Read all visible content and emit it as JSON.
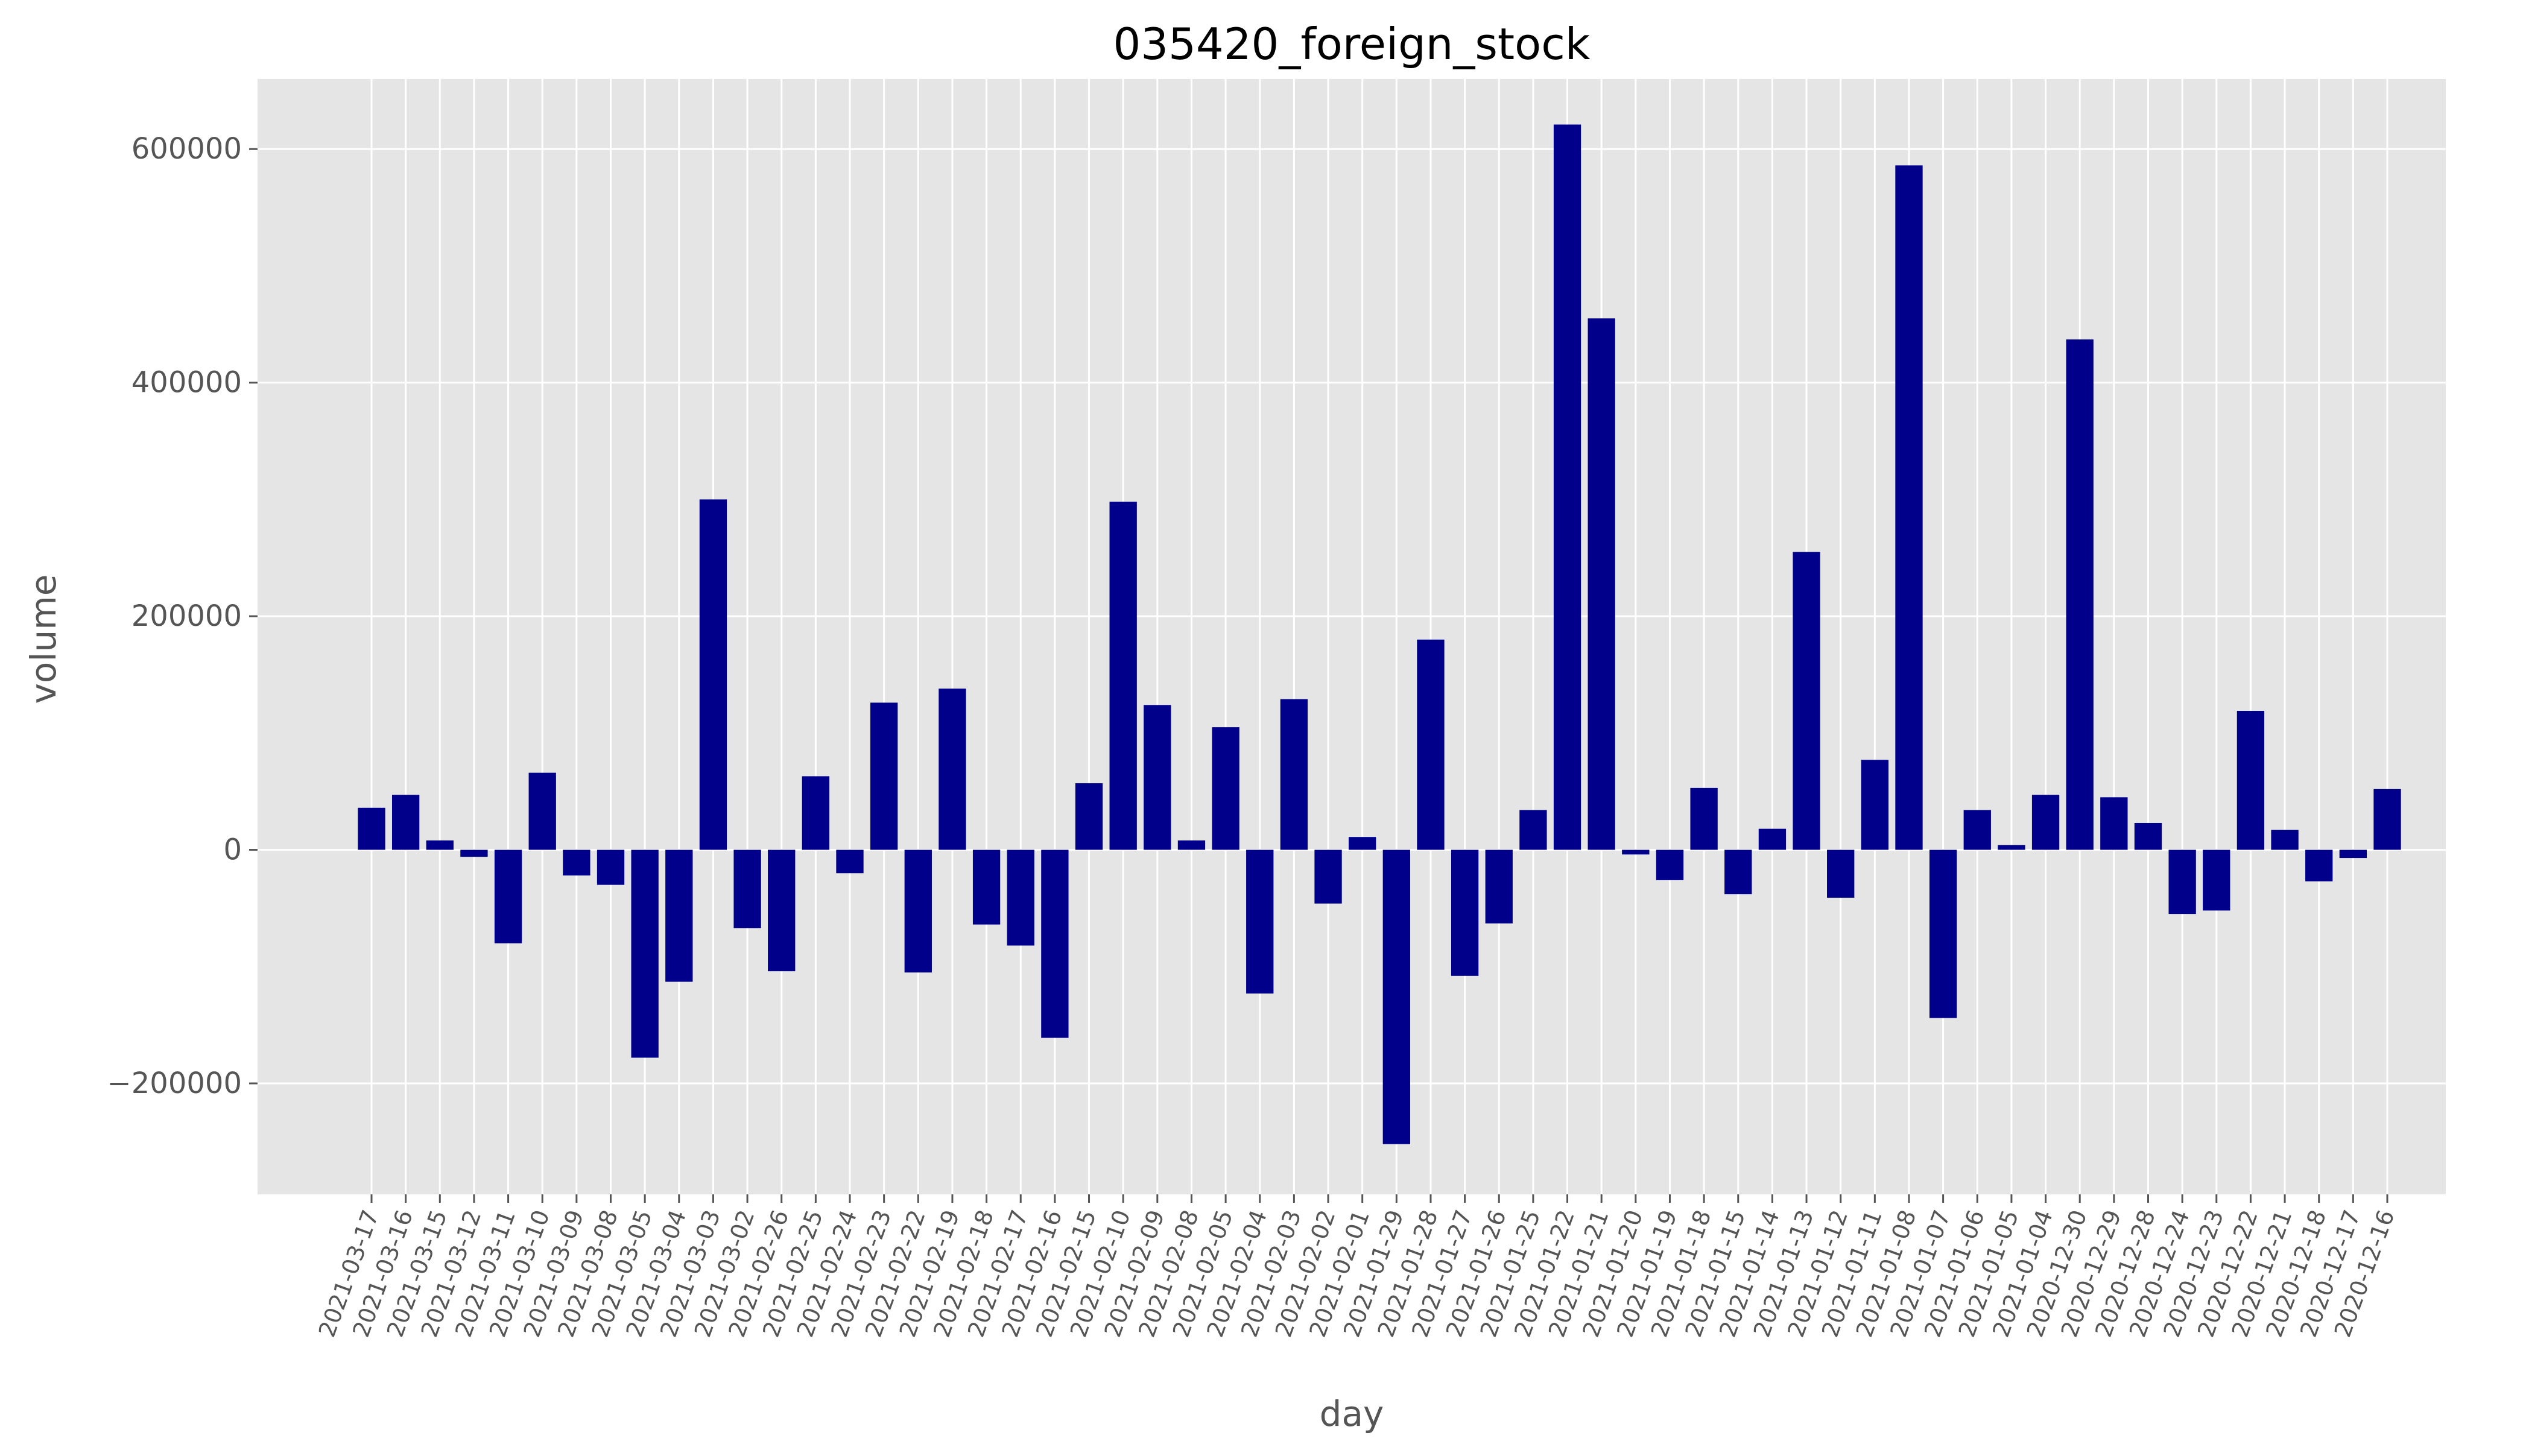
{
  "chart_data": {
    "type": "bar",
    "title": "035420_foreign_stock",
    "xlabel": "day",
    "ylabel": "volume",
    "ylim": [
      -295000,
      660000
    ],
    "yticks": [
      -200000,
      0,
      200000,
      400000,
      600000
    ],
    "ytick_labels": [
      "−200000",
      "0",
      "200000",
      "400000",
      "600000"
    ],
    "grid": true,
    "colors": {
      "bar": "#00008b",
      "plot_background": "#e5e5e5",
      "grid": "#ffffff",
      "text": "#555555"
    },
    "categories": [
      "2021-03-17",
      "2021-03-16",
      "2021-03-15",
      "2021-03-12",
      "2021-03-11",
      "2021-03-10",
      "2021-03-09",
      "2021-03-08",
      "2021-03-05",
      "2021-03-04",
      "2021-03-03",
      "2021-03-02",
      "2021-02-26",
      "2021-02-25",
      "2021-02-24",
      "2021-02-23",
      "2021-02-22",
      "2021-02-19",
      "2021-02-18",
      "2021-02-17",
      "2021-02-16",
      "2021-02-15",
      "2021-02-10",
      "2021-02-09",
      "2021-02-08",
      "2021-02-05",
      "2021-02-04",
      "2021-02-03",
      "2021-02-02",
      "2021-02-01",
      "2021-01-29",
      "2021-01-28",
      "2021-01-27",
      "2021-01-26",
      "2021-01-25",
      "2021-01-22",
      "2021-01-21",
      "2021-01-20",
      "2021-01-19",
      "2021-01-18",
      "2021-01-15",
      "2021-01-14",
      "2021-01-13",
      "2021-01-12",
      "2021-01-11",
      "2021-01-08",
      "2021-01-07",
      "2021-01-06",
      "2021-01-05",
      "2021-01-04",
      "2020-12-30",
      "2020-12-29",
      "2020-12-28",
      "2020-12-24",
      "2020-12-23",
      "2020-12-22",
      "2020-12-21",
      "2020-12-18",
      "2020-12-17",
      "2020-12-16"
    ],
    "values": [
      36000,
      47000,
      8000,
      -6000,
      -80000,
      66000,
      -22000,
      -30000,
      -178000,
      -113000,
      300000,
      -67000,
      -104000,
      63000,
      -20000,
      126000,
      -105000,
      138000,
      -64000,
      -82000,
      -161000,
      57000,
      298000,
      124000,
      8000,
      105000,
      -123000,
      129000,
      -46000,
      11000,
      -252000,
      180000,
      -108000,
      -63000,
      34000,
      621000,
      455000,
      -4000,
      -26000,
      53000,
      -38000,
      18000,
      255000,
      -41000,
      77000,
      586000,
      -144000,
      34000,
      4000,
      47000,
      437000,
      45000,
      23000,
      -55000,
      -52000,
      119000,
      17000,
      -27000,
      -7000,
      52000
    ]
  }
}
